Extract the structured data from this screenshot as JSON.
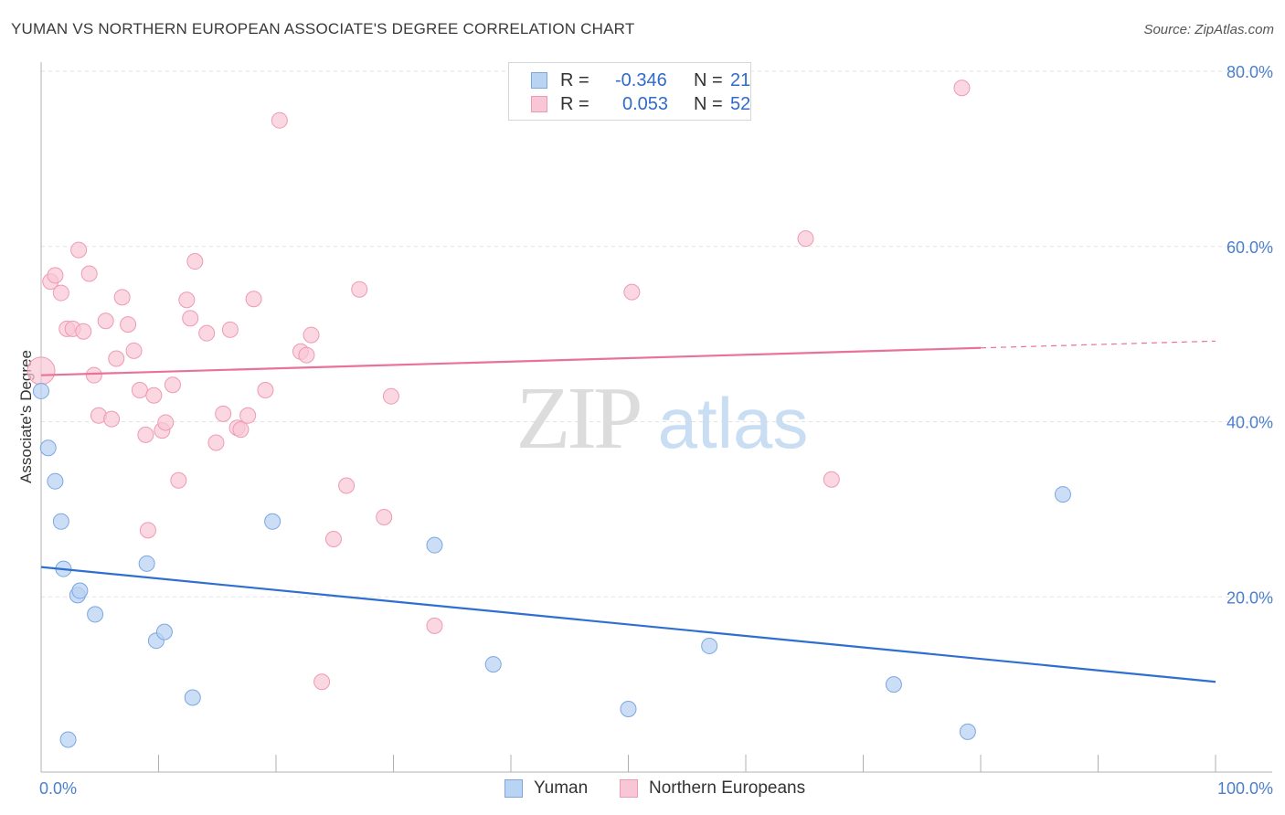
{
  "header": {
    "title": "YUMAN VS NORTHERN EUROPEAN ASSOCIATE'S DEGREE CORRELATION CHART",
    "source": "Source: ZipAtlas.com"
  },
  "watermark": {
    "zip": "ZIP",
    "atlas": "atlas"
  },
  "legend": {
    "rows": [
      {
        "r_label": "R =",
        "r_value": "-0.346",
        "n_label": "N =",
        "n_value": "21"
      },
      {
        "r_label": "R =",
        "r_value": "0.053",
        "n_label": "N =",
        "n_value": "52"
      }
    ]
  },
  "bottom_legend": {
    "yuman": "Yuman",
    "northern": "Northern Europeans"
  },
  "colors": {
    "yuman_fill": "#b9d3f3",
    "yuman_stroke": "#7aa7e0",
    "yuman_line": "#2e6fd0",
    "northern_fill": "#f9c6d6",
    "northern_stroke": "#ee9ab5",
    "northern_line": "#e8729a",
    "tick_text": "#4a7fd0"
  },
  "chart_data": {
    "type": "scatter",
    "title": "YUMAN VS NORTHERN EUROPEAN ASSOCIATE'S DEGREE CORRELATION CHART",
    "xlabel": "",
    "ylabel": "Associate's Degree",
    "xlim": [
      0,
      100
    ],
    "ylim": [
      0,
      80
    ],
    "x_tick_labels": [
      "0.0%",
      "100.0%"
    ],
    "y_ticks": [
      20,
      40,
      60,
      80
    ],
    "y_tick_labels": [
      "20.0%",
      "40.0%",
      "60.0%",
      "80.0%"
    ],
    "grid": true,
    "legend_position": "top-center",
    "series": [
      {
        "name": "Yuman",
        "points": [
          [
            0.0,
            43.5
          ],
          [
            0.6,
            37.0
          ],
          [
            1.2,
            33.2
          ],
          [
            1.7,
            28.6
          ],
          [
            1.9,
            23.2
          ],
          [
            3.1,
            20.2
          ],
          [
            3.3,
            20.7
          ],
          [
            4.6,
            18.0
          ],
          [
            9.0,
            23.8
          ],
          [
            9.8,
            15.0
          ],
          [
            10.5,
            16.0
          ],
          [
            12.9,
            8.5
          ],
          [
            19.7,
            28.6
          ],
          [
            33.5,
            25.9
          ],
          [
            38.5,
            12.3
          ],
          [
            50.0,
            7.2
          ],
          [
            56.9,
            14.4
          ],
          [
            72.6,
            10.0
          ],
          [
            78.9,
            4.6
          ],
          [
            87.0,
            31.7
          ],
          [
            2.3,
            3.7
          ]
        ],
        "trend": {
          "x": [
            0,
            100
          ],
          "y": [
            23.4,
            10.3
          ]
        }
      },
      {
        "name": "Northern Europeans",
        "points": [
          [
            0.0,
            45.8
          ],
          [
            0.8,
            56.0
          ],
          [
            1.2,
            56.7
          ],
          [
            1.7,
            54.7
          ],
          [
            2.2,
            50.6
          ],
          [
            2.7,
            50.6
          ],
          [
            3.2,
            59.6
          ],
          [
            3.6,
            50.3
          ],
          [
            4.1,
            56.9
          ],
          [
            4.5,
            45.3
          ],
          [
            4.9,
            40.7
          ],
          [
            5.5,
            51.5
          ],
          [
            6.0,
            40.3
          ],
          [
            6.4,
            47.2
          ],
          [
            6.9,
            54.2
          ],
          [
            7.4,
            51.1
          ],
          [
            7.9,
            48.1
          ],
          [
            8.4,
            43.6
          ],
          [
            8.9,
            38.5
          ],
          [
            9.1,
            27.6
          ],
          [
            9.6,
            43.0
          ],
          [
            10.3,
            39.0
          ],
          [
            10.6,
            39.9
          ],
          [
            11.2,
            44.2
          ],
          [
            11.7,
            33.3
          ],
          [
            12.4,
            53.9
          ],
          [
            12.7,
            51.8
          ],
          [
            13.1,
            58.3
          ],
          [
            14.1,
            50.1
          ],
          [
            14.9,
            37.6
          ],
          [
            15.5,
            40.9
          ],
          [
            16.1,
            50.5
          ],
          [
            16.7,
            39.3
          ],
          [
            17.0,
            39.1
          ],
          [
            17.6,
            40.7
          ],
          [
            18.1,
            54.0
          ],
          [
            19.1,
            43.6
          ],
          [
            20.3,
            74.4
          ],
          [
            22.1,
            48.0
          ],
          [
            22.6,
            47.6
          ],
          [
            23.0,
            49.9
          ],
          [
            23.9,
            10.3
          ],
          [
            24.9,
            26.6
          ],
          [
            26.0,
            32.7
          ],
          [
            27.1,
            55.1
          ],
          [
            29.2,
            29.1
          ],
          [
            29.8,
            42.9
          ],
          [
            33.5,
            16.7
          ],
          [
            50.3,
            54.8
          ],
          [
            65.1,
            60.9
          ],
          [
            67.3,
            33.4
          ],
          [
            78.4,
            78.1
          ]
        ],
        "trend": {
          "x": [
            0,
            100
          ],
          "y": [
            45.3,
            49.2
          ]
        }
      }
    ]
  }
}
